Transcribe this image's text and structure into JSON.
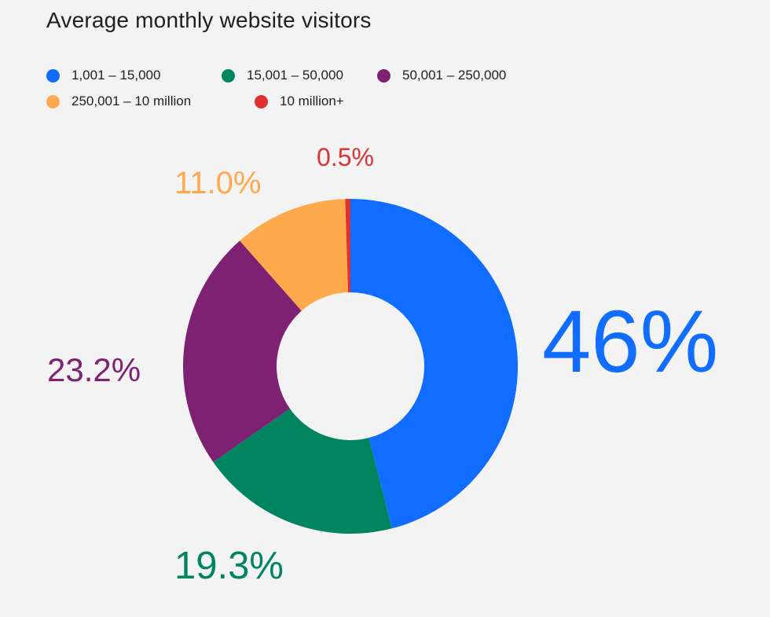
{
  "title": "Average monthly website visitors",
  "chart_data": {
    "type": "pie",
    "variant": "donut",
    "title": "Average monthly website visitors",
    "legend_position": "top-left",
    "slices": [
      {
        "label": "1,001 – 15,000",
        "value": 46,
        "display": "46%",
        "color": "#116dff"
      },
      {
        "label": "15,001 – 50,000",
        "value": 19.3,
        "display": "19.3%",
        "color": "#008560"
      },
      {
        "label": "50,001 – 250,000",
        "value": 23.2,
        "display": "23.2%",
        "color": "#7e2173"
      },
      {
        "label": "250,001 – 10 million",
        "value": 11.0,
        "display": "11.0%",
        "color": "#ffa94d"
      },
      {
        "label": "10 million+",
        "value": 0.5,
        "display": "0.5%",
        "color": "#df3131"
      }
    ]
  }
}
